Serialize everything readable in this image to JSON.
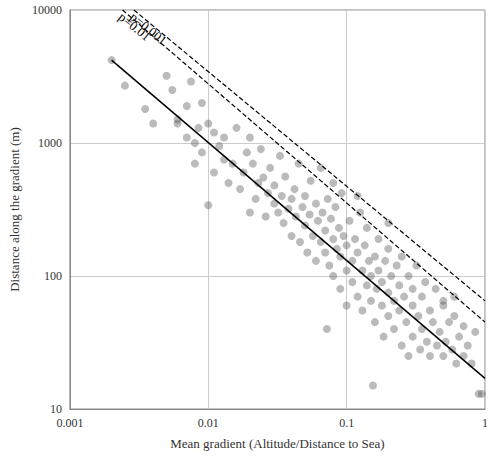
{
  "chart_data": {
    "type": "scatter",
    "x_label": "Mean gradient (Altitude/Distance to Sea)",
    "y_label": "Distance along the gradient (m)",
    "log": true,
    "grid": true,
    "xlim": [
      0.001,
      1
    ],
    "xticks": [
      0.001,
      0.01,
      0.1,
      1
    ],
    "ylim": [
      10,
      10000
    ],
    "yticks": [
      10,
      100,
      1000,
      10000
    ],
    "series": [
      {
        "type": "scatter",
        "color": "#555555",
        "marker": "circle",
        "x": [
          0.002,
          0.0025,
          0.0035,
          0.004,
          0.005,
          0.0055,
          0.006,
          0.006,
          0.007,
          0.007,
          0.0075,
          0.008,
          0.008,
          0.0085,
          0.009,
          0.009,
          0.01,
          0.01,
          0.011,
          0.011,
          0.012,
          0.013,
          0.013,
          0.014,
          0.015,
          0.016,
          0.017,
          0.018,
          0.019,
          0.02,
          0.02,
          0.021,
          0.022,
          0.023,
          0.024,
          0.025,
          0.026,
          0.027,
          0.028,
          0.03,
          0.03,
          0.032,
          0.033,
          0.034,
          0.035,
          0.036,
          0.038,
          0.04,
          0.04,
          0.042,
          0.043,
          0.045,
          0.046,
          0.048,
          0.05,
          0.05,
          0.052,
          0.054,
          0.055,
          0.057,
          0.06,
          0.06,
          0.062,
          0.065,
          0.065,
          0.067,
          0.07,
          0.07,
          0.072,
          0.073,
          0.075,
          0.077,
          0.08,
          0.08,
          0.083,
          0.085,
          0.088,
          0.09,
          0.09,
          0.092,
          0.095,
          0.1,
          0.1,
          0.1,
          0.105,
          0.11,
          0.11,
          0.115,
          0.12,
          0.12,
          0.125,
          0.13,
          0.13,
          0.135,
          0.14,
          0.14,
          0.145,
          0.15,
          0.15,
          0.155,
          0.16,
          0.16,
          0.165,
          0.17,
          0.17,
          0.18,
          0.18,
          0.185,
          0.19,
          0.2,
          0.2,
          0.2,
          0.21,
          0.22,
          0.22,
          0.23,
          0.24,
          0.24,
          0.25,
          0.25,
          0.26,
          0.27,
          0.28,
          0.28,
          0.3,
          0.3,
          0.3,
          0.32,
          0.33,
          0.34,
          0.35,
          0.35,
          0.37,
          0.38,
          0.4,
          0.4,
          0.42,
          0.44,
          0.45,
          0.47,
          0.5,
          0.5,
          0.52,
          0.55,
          0.58,
          0.6,
          0.62,
          0.65,
          0.7,
          0.7,
          0.75,
          0.8,
          0.85,
          0.9,
          0.95,
          0.5,
          0.6,
          0.12,
          0.2,
          0.08
        ],
        "values": [
          4200,
          2700,
          1800,
          1400,
          3200,
          2500,
          1500,
          1400,
          1100,
          1900,
          2900,
          700,
          1000,
          1300,
          2000,
          850,
          340,
          1400,
          1200,
          600,
          950,
          750,
          1100,
          500,
          700,
          1300,
          450,
          600,
          850,
          300,
          1100,
          700,
          380,
          500,
          900,
          550,
          280,
          420,
          650,
          350,
          480,
          300,
          800,
          400,
          250,
          560,
          320,
          200,
          380,
          450,
          280,
          700,
          180,
          330,
          240,
          400,
          150,
          290,
          520,
          200,
          350,
          130,
          260,
          180,
          650,
          300,
          150,
          220,
          40,
          380,
          120,
          270,
          190,
          100,
          330,
          160,
          230,
          80,
          140,
          420,
          200,
          110,
          170,
          60,
          260,
          130,
          90,
          190,
          70,
          150,
          300,
          110,
          55,
          170,
          85,
          230,
          130,
          65,
          100,
          15,
          140,
          45,
          80,
          190,
          110,
          60,
          90,
          35,
          130,
          75,
          50,
          160,
          100,
          40,
          65,
          120,
          55,
          85,
          30,
          140,
          70,
          45,
          100,
          25,
          60,
          35,
          80,
          120,
          50,
          28,
          70,
          40,
          90,
          32,
          55,
          25,
          45,
          80,
          30,
          38,
          60,
          25,
          32,
          45,
          28,
          50,
          22,
          35,
          42,
          25,
          30,
          22,
          38,
          13,
          13,
          65,
          70,
          400,
          250,
          500
        ]
      },
      {
        "type": "line",
        "color": "#000000",
        "line_style": "solid",
        "x": [
          0.002,
          1
        ],
        "values": [
          4200,
          17
        ]
      },
      {
        "type": "line",
        "name": "p=0.01",
        "color": "#000000",
        "line_style": "dashed",
        "x": [
          0.0024,
          1
        ],
        "values": [
          10000,
          45
        ]
      },
      {
        "type": "line",
        "name": "p=0.001",
        "color": "#000000",
        "line_style": "dashed",
        "x": [
          0.0029,
          1
        ],
        "values": [
          10000,
          65
        ]
      }
    ]
  }
}
